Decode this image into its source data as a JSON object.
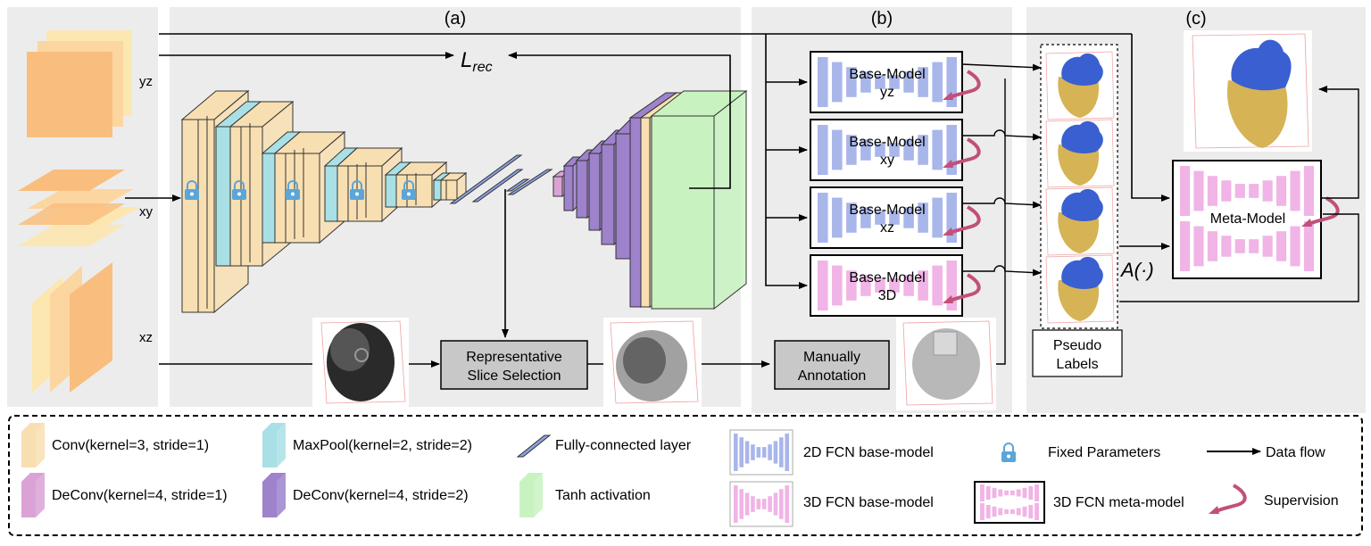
{
  "panels": {
    "a": "(a)",
    "b": "(b)",
    "c": "(c)"
  },
  "input_views": {
    "yz": "yz",
    "xy": "xy",
    "xz": "xz"
  },
  "loss": {
    "main": "L",
    "sub": "rec"
  },
  "representative": {
    "line1": "Representative",
    "line2": "Slice Selection"
  },
  "manual": {
    "line1": "Manually",
    "line2": "Annotation"
  },
  "base_models": [
    {
      "line1": "Base-Model",
      "line2": "yz",
      "kind": "2d"
    },
    {
      "line1": "Base-Model",
      "line2": "xy",
      "kind": "2d"
    },
    {
      "line1": "Base-Model",
      "line2": "xz",
      "kind": "2d"
    },
    {
      "line1": "Base-Model",
      "line2": "3D",
      "kind": "3d"
    }
  ],
  "pseudo_labels": {
    "line1": "Pseudo",
    "line2": "Labels"
  },
  "aggregation": "A(·)",
  "meta_model": "Meta-Model",
  "legend": {
    "conv": "Conv(kernel=3, stride=1)",
    "maxpool": "MaxPool(kernel=2, stride=2)",
    "fc": "Fully-connected layer",
    "fcn2d": "2D FCN base-model",
    "fixed": "Fixed Parameters",
    "dataflow": "Data flow",
    "deconv1": "DeConv(kernel=4, stride=1)",
    "deconv2": "DeConv(kernel=4, stride=2)",
    "tanh": "Tanh activation",
    "fcn3d": "3D FCN base-model",
    "meta": "3D FCN meta-model",
    "supervision": "Supervision"
  },
  "colors": {
    "conv": "#f8dfb2",
    "maxpool": "#a8e0e6",
    "fc": "#8aa2e0",
    "deconv1": "#dba2d6",
    "deconv2": "#9e82cc",
    "tanh": "#c8f3c1",
    "blue2d": "#a9b6ea",
    "pink3d": "#f0b4e6",
    "supervision": "#c1507a",
    "panel_bg": "#ececec",
    "heart_blue": "#3a5fd0",
    "heart_gold": "#d6b355"
  },
  "icons": [
    "lock-icon",
    "data-flow-arrow-icon",
    "supervision-arrow-icon"
  ]
}
